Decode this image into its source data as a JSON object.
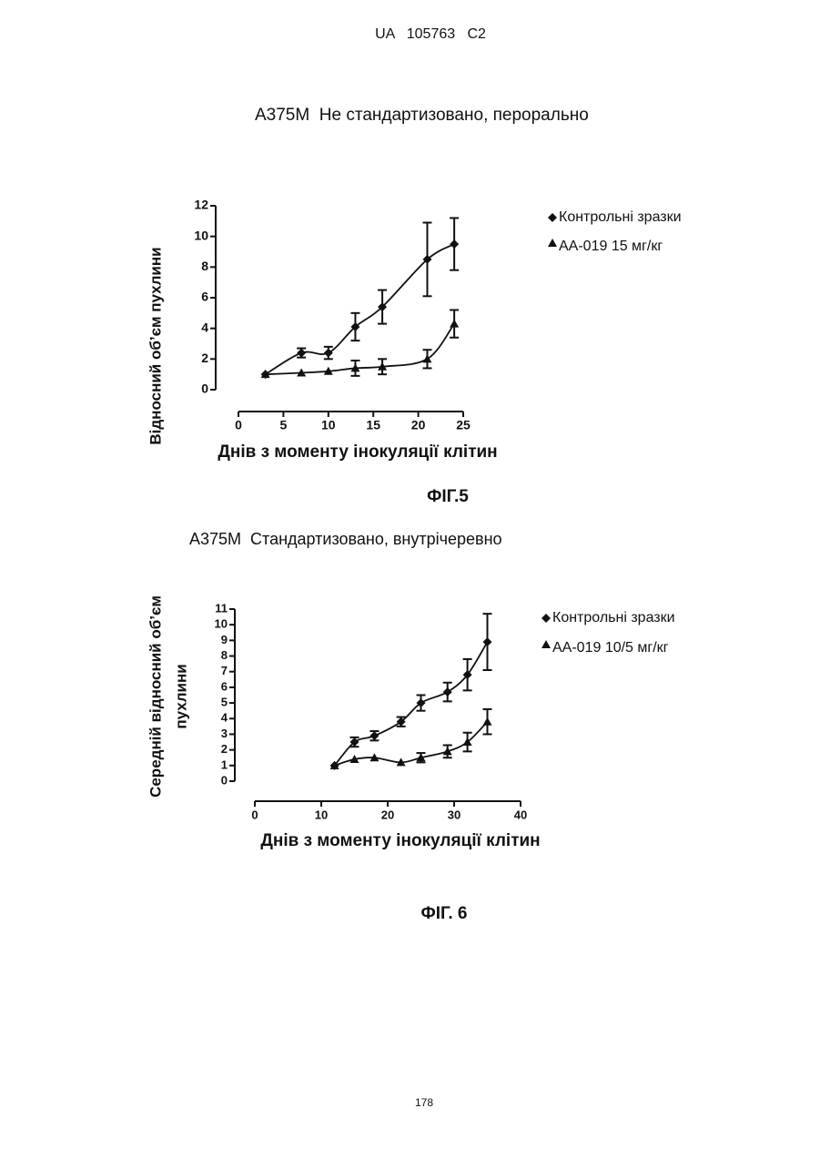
{
  "header": "UA   105763   C2",
  "page_number": "178",
  "chart_data": [
    {
      "type": "line",
      "title": "A375M  Не стандартизовано, перорально",
      "xlabel": "Днів з моменту інокуляції клітин",
      "ylabel": [
        "Відносний об’єм пухлини"
      ],
      "caption": "ФІГ.5",
      "xlim": [
        0,
        25
      ],
      "xticks": [
        0,
        5,
        10,
        15,
        20,
        25
      ],
      "ylim": [
        0,
        12
      ],
      "yticks": [
        0,
        2,
        4,
        6,
        8,
        10,
        12
      ],
      "series": [
        {
          "name": "Контрольні зразки",
          "marker": "diamond",
          "color": "#111111",
          "x": [
            3,
            7,
            10,
            13,
            16,
            21,
            24
          ],
          "values": [
            1.0,
            2.4,
            2.4,
            4.1,
            5.4,
            8.5,
            9.5
          ],
          "errors": [
            null,
            0.3,
            0.4,
            0.9,
            1.1,
            2.4,
            1.7
          ]
        },
        {
          "name": "АА-019 15 мг/кг",
          "marker": "triangle",
          "color": "#111111",
          "x": [
            3,
            7,
            10,
            13,
            16,
            21,
            24
          ],
          "values": [
            1.0,
            1.1,
            1.2,
            1.4,
            1.5,
            2.0,
            4.3
          ],
          "errors": [
            null,
            null,
            null,
            0.5,
            0.5,
            0.6,
            0.9
          ]
        }
      ]
    },
    {
      "type": "line",
      "title": "A375M  Стандартизовано, внутрічеревно",
      "xlabel": "Днів з моменту інокуляції клітин",
      "ylabel": [
        "Середній відносний об’єм",
        "пухлини"
      ],
      "caption": "ФІГ. 6",
      "xlim": [
        0,
        40
      ],
      "xticks": [
        0,
        10,
        20,
        30,
        40
      ],
      "ylim": [
        0,
        11
      ],
      "yticks": [
        0,
        1,
        2,
        3,
        4,
        5,
        6,
        7,
        8,
        9,
        10,
        11
      ],
      "series": [
        {
          "name": "Контрольні зразки",
          "marker": "diamond",
          "color": "#111111",
          "x": [
            12,
            15,
            18,
            22,
            25,
            29,
            32,
            35
          ],
          "values": [
            1.0,
            2.5,
            2.9,
            3.8,
            5.0,
            5.7,
            6.8,
            8.9
          ],
          "errors": [
            null,
            0.3,
            0.3,
            0.3,
            0.5,
            0.6,
            1.0,
            1.8
          ]
        },
        {
          "name": "АА-019 10/5 мг/кг",
          "marker": "triangle",
          "color": "#111111",
          "x": [
            12,
            15,
            18,
            22,
            25,
            29,
            32,
            35
          ],
          "values": [
            1.0,
            1.4,
            1.5,
            1.2,
            1.5,
            1.9,
            2.5,
            3.8
          ],
          "errors": [
            null,
            null,
            null,
            null,
            0.3,
            0.4,
            0.6,
            0.8
          ]
        }
      ]
    }
  ]
}
